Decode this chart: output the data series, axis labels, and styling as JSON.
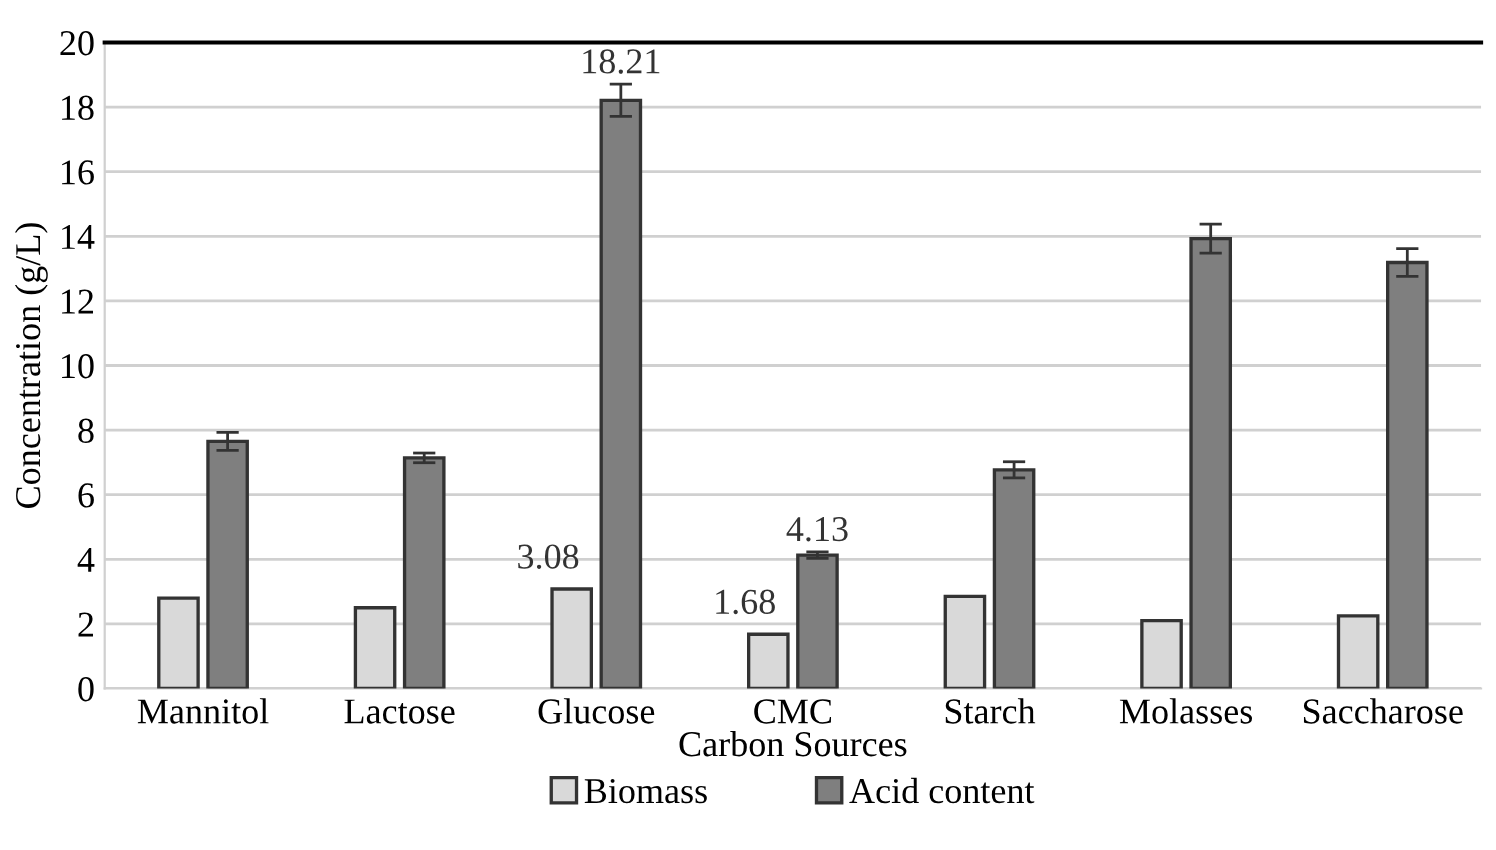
{
  "chart_data": {
    "type": "bar",
    "xlabel": "Carbon Sources",
    "ylabel": "Concentration (g/L)",
    "categories": [
      "Mannitol",
      "Lactose",
      "Glucose",
      "CMC",
      "Starch",
      "Molasses",
      "Saccharose"
    ],
    "series": [
      {
        "name": "Biomass",
        "color": "#d9d9d9",
        "values": [
          2.8,
          2.5,
          3.08,
          1.68,
          2.85,
          2.1,
          2.25
        ],
        "value_labels": [
          null,
          null,
          "3.08",
          "1.68",
          null,
          null,
          null
        ]
      },
      {
        "name": "Acid content",
        "color": "#7f7f7f",
        "values": [
          7.65,
          7.14,
          18.21,
          4.13,
          6.77,
          13.93,
          13.19
        ],
        "errors": [
          0.28,
          0.15,
          0.5,
          0.1,
          0.25,
          0.45,
          0.43
        ],
        "value_labels": [
          null,
          null,
          "18.21",
          "4.13",
          null,
          null,
          null
        ]
      }
    ],
    "ylim": [
      0,
      20
    ],
    "yticks": [
      0,
      2,
      4,
      6,
      8,
      10,
      12,
      14,
      16,
      18,
      20
    ],
    "grid": "y",
    "legend": "bottom"
  }
}
